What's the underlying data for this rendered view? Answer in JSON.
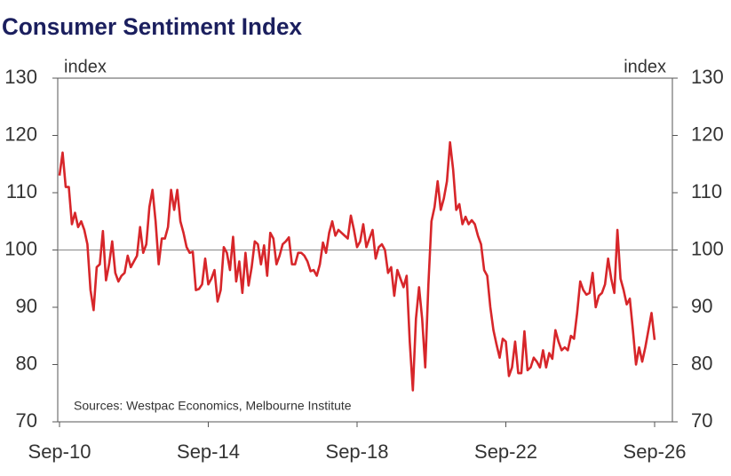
{
  "chart_data": {
    "type": "line",
    "title": "Consumer Sentiment Index",
    "y_axis_label": "index",
    "y2_axis_label": "index",
    "annotation": "Sources: Westpac Economics, Melbourne Institute",
    "categories": [
      "Sep-10",
      null,
      null,
      null,
      null,
      null,
      null,
      null,
      null,
      null,
      null,
      null,
      null,
      null,
      null,
      null,
      null,
      null,
      null,
      null,
      null,
      null,
      null,
      null,
      null,
      null,
      null,
      null,
      null,
      null,
      null,
      null,
      null,
      null,
      null,
      null,
      null,
      null,
      null,
      null,
      null,
      null,
      null,
      null,
      null,
      null,
      null,
      null,
      "Sep-14",
      null,
      null,
      null,
      null,
      null,
      null,
      null,
      null,
      null,
      null,
      null,
      null,
      null,
      null,
      null,
      null,
      null,
      null,
      null,
      null,
      null,
      null,
      null,
      null,
      null,
      null,
      null,
      null,
      null,
      null,
      null,
      null,
      null,
      null,
      null,
      null,
      null,
      null,
      null,
      null,
      null,
      null,
      null,
      null,
      null,
      null,
      null,
      "Sep-18",
      null,
      null,
      null,
      null,
      null,
      null,
      null,
      null,
      null,
      null,
      null,
      null,
      null,
      null,
      null,
      null,
      null,
      null,
      null,
      null,
      null,
      null,
      null,
      null,
      null,
      null,
      null,
      null,
      null,
      null,
      null,
      null,
      null,
      null,
      null,
      null,
      null,
      null,
      null,
      null,
      null,
      null,
      null,
      null,
      null,
      null,
      null,
      "Sep-22",
      null,
      null,
      null,
      null,
      null,
      null,
      null,
      null,
      null,
      null,
      null,
      null,
      null,
      null,
      null,
      null,
      null,
      null,
      null,
      null,
      null,
      null,
      null,
      null,
      null,
      null,
      null,
      null,
      null,
      null,
      null,
      null,
      null,
      null,
      null,
      null,
      null,
      null,
      null,
      null,
      null,
      null,
      null,
      null,
      null,
      null,
      null,
      "Sep-26"
    ],
    "values": [
      113,
      117,
      111,
      111,
      104.5,
      106.5,
      104,
      105,
      103.5,
      101,
      93,
      89.5,
      97,
      97.5,
      103.3,
      94.7,
      97.5,
      101.5,
      96,
      94.5,
      95.5,
      96,
      99,
      97,
      98,
      99,
      104,
      99.5,
      101,
      107.5,
      110.5,
      105,
      97.5,
      102,
      102,
      104,
      110.5,
      107,
      110.5,
      105,
      103,
      100.5,
      99.5,
      99.7,
      93,
      93.2,
      94,
      98.5,
      94,
      95,
      96.5,
      91,
      93,
      100.5,
      99.5,
      96.5,
      102.3,
      94.5,
      98,
      92.5,
      99.5,
      93.8,
      97,
      101.5,
      101,
      97.5,
      100.8,
      95.5,
      103,
      102,
      97.5,
      99,
      101,
      101.5,
      102.2,
      97.5,
      97.5,
      99.5,
      99.5,
      99,
      98,
      96.3,
      96.5,
      95.5,
      97.5,
      101.3,
      99.5,
      103,
      105,
      102.5,
      103.5,
      103,
      102.5,
      102,
      106,
      103.5,
      100.5,
      101.5,
      104.5,
      100.5,
      102,
      103.5,
      98.5,
      100.5,
      101,
      100,
      96,
      97,
      92,
      96.5,
      95,
      93.5,
      95.5,
      84,
      75.5,
      88,
      93.5,
      88,
      79.5,
      93.8,
      105,
      107.5,
      112,
      107,
      109,
      112,
      118.8,
      114,
      107,
      108,
      104.5,
      105.8,
      104.5,
      105.2,
      104.5,
      102.5,
      101,
      96.5,
      95.5,
      90,
      86,
      83.5,
      81.2,
      84.5,
      84,
      78,
      79.5,
      84,
      78.5,
      78.5,
      85.8,
      79,
      79.5,
      81.2,
      80.5,
      79.5,
      82.5,
      79.5,
      82,
      81,
      86,
      84,
      82.5,
      83,
      82.5,
      85,
      84.5,
      89,
      94.5,
      93,
      92.2,
      92.5,
      96,
      90,
      92,
      92.5,
      94,
      98.5,
      95,
      92.5,
      103.5,
      95,
      93,
      90.5,
      91.5,
      86,
      80,
      83,
      80.5,
      83,
      86,
      89,
      84.3
    ],
    "color": "#d7262a",
    "reference_line": 100,
    "ylim": [
      70,
      130
    ],
    "yticks": [
      70,
      80,
      90,
      100,
      110,
      120,
      130
    ],
    "y2lim": [
      70,
      130
    ],
    "y2ticks": [
      70,
      80,
      90,
      100,
      110,
      120,
      130
    ]
  }
}
